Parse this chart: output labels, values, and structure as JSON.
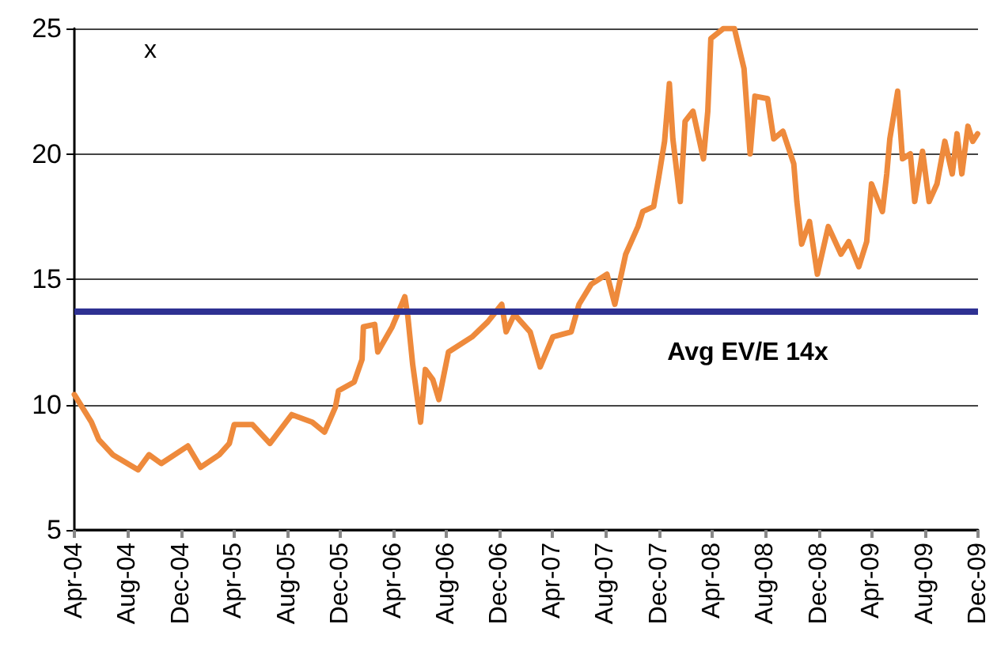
{
  "chart_data": {
    "type": "line",
    "ylabel": "x",
    "x": [
      "2004-04-01",
      "2004-05-10",
      "2004-05-27",
      "2004-06-28",
      "2004-08-25",
      "2004-09-19",
      "2004-10-17",
      "2004-12-17",
      "2005-01-15",
      "2005-02-27",
      "2005-03-22",
      "2005-04-02",
      "2005-05-14",
      "2005-06-23",
      "2005-08-12",
      "2005-09-28",
      "2005-10-26",
      "2005-11-20",
      "2005-11-27",
      "2006-01-02",
      "2006-01-20",
      "2006-01-23",
      "2006-02-18",
      "2006-02-25",
      "2006-03-30",
      "2006-04-28",
      "2006-05-05",
      "2006-05-16",
      "2006-06-03",
      "2006-06-14",
      "2006-07-01",
      "2006-07-15",
      "2006-08-06",
      "2006-09-29",
      "2006-11-04",
      "2006-12-06",
      "2006-12-16",
      "2007-01-04",
      "2007-02-09",
      "2007-03-04",
      "2007-04-02",
      "2007-05-14",
      "2007-06-01",
      "2007-06-29",
      "2007-08-04",
      "2007-08-22",
      "2007-09-16",
      "2007-10-14",
      "2007-10-25",
      "2007-11-19",
      "2007-11-30",
      "2007-12-14",
      "2007-12-25",
      "2008-01-02",
      "2008-01-19",
      "2008-01-30",
      "2008-02-17",
      "2008-03-12",
      "2008-03-22",
      "2008-03-29",
      "2008-04-27",
      "2008-05-22",
      "2008-06-13",
      "2008-06-27",
      "2008-07-08",
      "2008-08-06",
      "2008-08-20",
      "2008-09-10",
      "2008-10-05",
      "2008-10-12",
      "2008-10-23",
      "2008-11-10",
      "2008-11-28",
      "2008-12-23",
      "2009-01-21",
      "2009-02-08",
      "2009-03-03",
      "2009-03-21",
      "2009-04-01",
      "2009-04-26",
      "2009-05-06",
      "2009-05-13",
      "2009-05-31",
      "2009-06-11",
      "2009-06-29",
      "2009-07-09",
      "2009-07-27",
      "2009-08-11",
      "2009-08-29",
      "2009-09-16",
      "2009-10-03",
      "2009-10-14",
      "2009-10-25",
      "2009-11-08",
      "2009-11-19",
      "2009-11-30"
    ],
    "series": [
      {
        "color": "#ee8a3c",
        "values": [
          10.4,
          9.3,
          8.6,
          8.0,
          7.4,
          8.0,
          7.65,
          8.35,
          7.5,
          8.0,
          8.45,
          9.2,
          9.2,
          8.45,
          9.6,
          9.3,
          8.9,
          9.9,
          10.55,
          10.9,
          11.8,
          13.1,
          13.2,
          12.1,
          13.1,
          14.3,
          13.5,
          11.6,
          9.3,
          11.4,
          11.0,
          10.2,
          12.1,
          12.7,
          13.3,
          14.0,
          12.9,
          13.6,
          12.9,
          11.5,
          12.7,
          12.9,
          14.0,
          14.8,
          15.2,
          14.0,
          16.0,
          17.1,
          17.7,
          17.9,
          19.0,
          20.5,
          22.8,
          20.6,
          18.1,
          21.3,
          21.7,
          19.8,
          21.7,
          24.6,
          25.0,
          25.0,
          23.4,
          20.0,
          22.3,
          22.2,
          20.6,
          20.9,
          19.6,
          18.1,
          16.4,
          17.3,
          15.2,
          17.1,
          16.0,
          16.5,
          15.5,
          16.5,
          18.8,
          17.7,
          19.2,
          20.6,
          22.5,
          19.8,
          20.0,
          18.1,
          20.1,
          18.1,
          18.8,
          20.5,
          19.2,
          20.8,
          19.2,
          21.1,
          20.5,
          20.8
        ]
      }
    ],
    "xlim": [
      "2004-04-01",
      "2009-12-01"
    ],
    "xticks": [
      {
        "value": "2004-04-01",
        "label": "Apr-04"
      },
      {
        "value": "2004-08-01",
        "label": "Aug-04"
      },
      {
        "value": "2004-12-01",
        "label": "Dec-04"
      },
      {
        "value": "2005-04-01",
        "label": "Apr-05"
      },
      {
        "value": "2005-08-01",
        "label": "Aug-05"
      },
      {
        "value": "2005-12-01",
        "label": "Dec-05"
      },
      {
        "value": "2006-04-01",
        "label": "Apr-06"
      },
      {
        "value": "2006-08-01",
        "label": "Aug-06"
      },
      {
        "value": "2006-12-01",
        "label": "Dec-06"
      },
      {
        "value": "2007-04-01",
        "label": "Apr-07"
      },
      {
        "value": "2007-08-01",
        "label": "Aug-07"
      },
      {
        "value": "2007-12-01",
        "label": "Dec-07"
      },
      {
        "value": "2008-04-01",
        "label": "Apr-08"
      },
      {
        "value": "2008-08-01",
        "label": "Aug-08"
      },
      {
        "value": "2008-12-01",
        "label": "Dec-08"
      },
      {
        "value": "2009-04-01",
        "label": "Apr-09"
      },
      {
        "value": "2009-08-01",
        "label": "Aug-09"
      },
      {
        "value": "2009-12-01",
        "label": "Dec-09"
      }
    ],
    "ylim": [
      5,
      25
    ],
    "yticks": [
      5,
      10,
      15,
      20,
      25
    ],
    "grid": "y",
    "ref_lines": [
      {
        "axis": "y",
        "value": 13.7,
        "label": "Avg EV/E 14x",
        "color": "#2e3192"
      }
    ]
  }
}
